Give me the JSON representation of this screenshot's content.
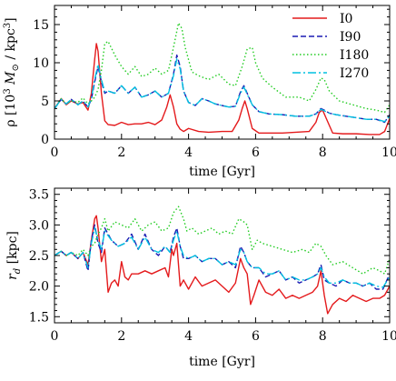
{
  "chart_data": [
    {
      "type": "line",
      "xlabel": "time [Gyr]",
      "ylabel_prefix": "ρ [10",
      "ylabel_sup": "3",
      "ylabel_mid": " M",
      "ylabel_sub": "⊙",
      "ylabel_suffix": " / kpc",
      "ylabel_sup2": "3",
      "ylabel_close": "]",
      "xlim": [
        0,
        10
      ],
      "ylim": [
        0,
        17.5
      ],
      "xticks": [
        0,
        2,
        4,
        6,
        8,
        10
      ],
      "yticks": [
        0,
        5,
        10,
        15
      ],
      "legend_position": "top-right",
      "series": [
        {
          "name": "I0",
          "color": "#e41a1c",
          "dash": "solid",
          "x": [
            0,
            0.2,
            0.35,
            0.5,
            0.7,
            0.85,
            1.0,
            1.1,
            1.2,
            1.25,
            1.3,
            1.4,
            1.5,
            1.6,
            1.8,
            2.0,
            2.2,
            2.4,
            2.6,
            2.8,
            3.0,
            3.2,
            3.35,
            3.45,
            3.55,
            3.65,
            3.75,
            3.85,
            4.0,
            4.3,
            4.6,
            5.0,
            5.3,
            5.5,
            5.6,
            5.68,
            5.75,
            5.9,
            6.1,
            6.4,
            6.8,
            7.2,
            7.6,
            7.8,
            7.9,
            8.0,
            8.1,
            8.3,
            8.6,
            9.0,
            9.4,
            9.7,
            9.85,
            10.0
          ],
          "y": [
            4.0,
            5.3,
            4.5,
            5.0,
            4.6,
            4.8,
            3.8,
            6.0,
            10.5,
            12.5,
            11.5,
            6.0,
            2.4,
            1.9,
            1.8,
            2.2,
            1.9,
            2.0,
            2.0,
            2.2,
            1.9,
            2.5,
            4.2,
            5.8,
            4.2,
            2.0,
            1.3,
            1.0,
            1.4,
            1.0,
            0.9,
            1.0,
            1.0,
            2.5,
            4.0,
            5.0,
            4.0,
            1.4,
            0.8,
            0.8,
            0.8,
            0.9,
            1.0,
            2.2,
            3.5,
            3.8,
            2.8,
            0.8,
            0.7,
            0.7,
            0.6,
            0.6,
            1.0,
            2.7
          ]
        },
        {
          "name": "I90",
          "color": "#1c1cb3",
          "dash": "6,3",
          "x": [
            0,
            0.2,
            0.35,
            0.5,
            0.7,
            0.85,
            1.0,
            1.1,
            1.2,
            1.3,
            1.4,
            1.5,
            1.6,
            1.8,
            2.0,
            2.2,
            2.4,
            2.6,
            2.8,
            3.0,
            3.2,
            3.4,
            3.55,
            3.65,
            3.75,
            3.85,
            4.0,
            4.2,
            4.4,
            4.6,
            4.8,
            5.0,
            5.2,
            5.4,
            5.55,
            5.65,
            5.75,
            5.9,
            6.1,
            6.4,
            6.8,
            7.2,
            7.6,
            7.8,
            7.95,
            8.05,
            8.2,
            8.4,
            8.7,
            9.0,
            9.3,
            9.6,
            9.85,
            10.0
          ],
          "y": [
            4.0,
            5.2,
            4.6,
            5.2,
            4.5,
            5.0,
            4.2,
            5.2,
            7.5,
            9.5,
            7.5,
            6.0,
            6.3,
            6.0,
            7.0,
            6.0,
            6.8,
            5.5,
            5.8,
            6.3,
            5.5,
            6.0,
            8.5,
            11.0,
            9.5,
            6.3,
            4.8,
            4.4,
            5.3,
            5.0,
            4.6,
            4.4,
            4.2,
            4.3,
            6.2,
            7.0,
            6.0,
            4.5,
            3.6,
            3.3,
            3.2,
            3.0,
            3.0,
            3.3,
            4.0,
            3.8,
            3.4,
            3.2,
            3.0,
            2.8,
            2.6,
            2.6,
            2.2,
            3.2
          ]
        },
        {
          "name": "I180",
          "color": "#22cc22",
          "dash": "1.5,2.5",
          "x": [
            0,
            0.2,
            0.35,
            0.5,
            0.7,
            0.85,
            1.0,
            1.1,
            1.2,
            1.3,
            1.4,
            1.5,
            1.6,
            1.8,
            2.0,
            2.2,
            2.4,
            2.6,
            2.8,
            3.0,
            3.2,
            3.4,
            3.55,
            3.7,
            3.8,
            3.9,
            4.1,
            4.3,
            4.6,
            4.9,
            5.2,
            5.4,
            5.6,
            5.75,
            5.9,
            6.0,
            6.2,
            6.5,
            6.9,
            7.3,
            7.6,
            7.8,
            7.95,
            8.05,
            8.2,
            8.5,
            8.9,
            9.3,
            9.6,
            9.85,
            10.0
          ],
          "y": [
            4.0,
            5.3,
            4.6,
            5.0,
            4.8,
            5.4,
            4.6,
            5.0,
            5.5,
            6.5,
            9.0,
            12.5,
            12.8,
            11.0,
            9.5,
            8.5,
            9.5,
            8.2,
            8.5,
            9.3,
            8.5,
            9.0,
            12.0,
            15.2,
            14.5,
            12.0,
            8.8,
            8.3,
            7.8,
            8.5,
            7.2,
            7.0,
            9.5,
            11.8,
            12.0,
            10.0,
            8.0,
            6.8,
            5.5,
            5.5,
            5.0,
            6.5,
            8.0,
            7.8,
            6.3,
            5.0,
            4.5,
            4.0,
            3.8,
            3.5,
            4.5
          ]
        },
        {
          "name": "I270",
          "color": "#00c0e0",
          "dash": "9,3,2,3",
          "x": [
            0,
            0.2,
            0.35,
            0.5,
            0.7,
            0.85,
            1.0,
            1.1,
            1.2,
            1.3,
            1.4,
            1.5,
            1.6,
            1.8,
            2.0,
            2.2,
            2.4,
            2.6,
            2.8,
            3.0,
            3.2,
            3.4,
            3.55,
            3.65,
            3.75,
            3.85,
            4.0,
            4.2,
            4.4,
            4.6,
            4.8,
            5.0,
            5.2,
            5.4,
            5.55,
            5.65,
            5.75,
            5.9,
            6.1,
            6.4,
            6.8,
            7.2,
            7.6,
            7.8,
            7.95,
            8.05,
            8.2,
            8.4,
            8.7,
            9.0,
            9.3,
            9.6,
            9.85,
            10.0
          ],
          "y": [
            4.0,
            5.2,
            4.6,
            5.2,
            4.5,
            5.0,
            4.2,
            5.4,
            7.8,
            9.8,
            7.8,
            6.2,
            6.3,
            6.0,
            7.0,
            6.0,
            6.8,
            5.5,
            5.8,
            6.3,
            5.5,
            6.0,
            8.3,
            10.5,
            9.2,
            6.3,
            4.8,
            4.4,
            5.3,
            5.0,
            4.6,
            4.4,
            4.2,
            4.3,
            6.0,
            6.8,
            5.9,
            4.5,
            3.6,
            3.3,
            3.2,
            3.0,
            3.0,
            3.3,
            3.9,
            3.7,
            3.4,
            3.2,
            3.0,
            2.8,
            2.6,
            2.6,
            2.3,
            3.0
          ]
        }
      ]
    },
    {
      "type": "line",
      "xlabel": "time [Gyr]",
      "ylabel_prefix": "r",
      "ylabel_sub": "d",
      "ylabel_suffix": " [kpc]",
      "xlim": [
        0,
        10
      ],
      "ylim": [
        1.4,
        3.6
      ],
      "xticks": [
        0,
        2,
        4,
        6,
        8,
        10
      ],
      "yticks": [
        1.5,
        2.0,
        2.5,
        3.0,
        3.5
      ],
      "series": [
        {
          "name": "I0",
          "color": "#e41a1c",
          "dash": "solid",
          "x": [
            0,
            0.2,
            0.35,
            0.5,
            0.7,
            0.85,
            1.0,
            1.1,
            1.2,
            1.25,
            1.3,
            1.4,
            1.5,
            1.6,
            1.7,
            1.8,
            1.9,
            2.0,
            2.1,
            2.2,
            2.3,
            2.5,
            2.7,
            2.9,
            3.1,
            3.3,
            3.4,
            3.5,
            3.55,
            3.65,
            3.75,
            3.85,
            4.0,
            4.2,
            4.4,
            4.6,
            4.8,
            5.0,
            5.2,
            5.4,
            5.55,
            5.65,
            5.75,
            5.85,
            5.95,
            6.1,
            6.3,
            6.5,
            6.7,
            6.9,
            7.1,
            7.3,
            7.5,
            7.7,
            7.85,
            7.95,
            8.05,
            8.15,
            8.3,
            8.5,
            8.7,
            8.9,
            9.1,
            9.3,
            9.5,
            9.7,
            9.85,
            10.0
          ],
          "y": [
            2.5,
            2.57,
            2.5,
            2.55,
            2.45,
            2.55,
            2.35,
            2.75,
            3.1,
            3.15,
            2.95,
            2.4,
            2.6,
            1.9,
            2.05,
            2.1,
            2.0,
            2.4,
            2.15,
            2.1,
            2.2,
            2.2,
            2.25,
            2.2,
            2.25,
            2.3,
            2.15,
            2.6,
            2.5,
            2.7,
            2.0,
            2.1,
            1.95,
            2.15,
            2.0,
            2.05,
            2.1,
            2.0,
            1.9,
            2.05,
            2.45,
            2.3,
            2.2,
            1.7,
            1.85,
            2.1,
            1.9,
            1.85,
            1.95,
            1.8,
            1.85,
            1.8,
            1.85,
            1.9,
            2.0,
            2.25,
            1.85,
            1.55,
            1.7,
            1.8,
            1.75,
            1.85,
            1.8,
            1.75,
            1.8,
            1.8,
            1.85,
            2.0
          ]
        },
        {
          "name": "I90",
          "color": "#1c1cb3",
          "dash": "6,3",
          "x": [
            0,
            0.2,
            0.35,
            0.5,
            0.7,
            0.85,
            1.0,
            1.1,
            1.2,
            1.3,
            1.4,
            1.5,
            1.7,
            1.9,
            2.1,
            2.3,
            2.5,
            2.7,
            2.9,
            3.1,
            3.3,
            3.45,
            3.55,
            3.65,
            3.75,
            3.85,
            4.0,
            4.2,
            4.4,
            4.6,
            4.8,
            5.0,
            5.2,
            5.4,
            5.55,
            5.65,
            5.75,
            5.9,
            6.1,
            6.3,
            6.5,
            6.7,
            6.9,
            7.1,
            7.3,
            7.5,
            7.7,
            7.85,
            7.95,
            8.05,
            8.2,
            8.4,
            8.6,
            8.8,
            9.0,
            9.2,
            9.4,
            9.6,
            9.8,
            10.0
          ],
          "y": [
            2.5,
            2.57,
            2.5,
            2.55,
            2.45,
            2.55,
            2.25,
            2.75,
            3.0,
            2.7,
            2.55,
            2.95,
            2.75,
            2.65,
            2.7,
            2.85,
            2.6,
            2.85,
            2.6,
            2.5,
            2.65,
            2.55,
            2.8,
            2.95,
            2.65,
            2.45,
            2.45,
            2.5,
            2.4,
            2.45,
            2.45,
            2.35,
            2.4,
            2.3,
            2.65,
            2.55,
            2.4,
            2.3,
            2.3,
            2.15,
            2.2,
            2.25,
            2.1,
            2.15,
            2.05,
            2.1,
            2.15,
            2.2,
            2.35,
            2.1,
            2.05,
            2.0,
            2.1,
            2.05,
            2.05,
            2.0,
            2.05,
            1.95,
            1.95,
            2.2
          ]
        },
        {
          "name": "I180",
          "color": "#22cc22",
          "dash": "1.5,2.5",
          "x": [
            0,
            0.2,
            0.35,
            0.5,
            0.7,
            0.85,
            1.0,
            1.1,
            1.2,
            1.3,
            1.4,
            1.5,
            1.6,
            1.8,
            2.0,
            2.2,
            2.4,
            2.6,
            2.8,
            3.0,
            3.2,
            3.4,
            3.55,
            3.7,
            3.85,
            3.95,
            4.1,
            4.3,
            4.5,
            4.7,
            4.9,
            5.1,
            5.3,
            5.5,
            5.65,
            5.75,
            5.9,
            6.05,
            6.2,
            6.5,
            6.8,
            7.1,
            7.4,
            7.6,
            7.8,
            7.95,
            8.1,
            8.3,
            8.6,
            8.9,
            9.2,
            9.5,
            9.7,
            9.85,
            10.0
          ],
          "y": [
            2.5,
            2.57,
            2.5,
            2.55,
            2.5,
            2.6,
            2.5,
            2.65,
            2.7,
            2.85,
            2.95,
            3.1,
            2.9,
            3.05,
            3.0,
            2.95,
            3.1,
            2.9,
            3.0,
            3.05,
            2.9,
            2.95,
            3.2,
            3.3,
            3.1,
            2.9,
            2.95,
            2.85,
            2.9,
            2.95,
            2.85,
            2.9,
            2.85,
            3.1,
            3.05,
            3.0,
            2.6,
            2.75,
            2.7,
            2.65,
            2.6,
            2.55,
            2.6,
            2.55,
            2.7,
            2.65,
            2.5,
            2.35,
            2.4,
            2.3,
            2.2,
            2.3,
            2.25,
            2.2,
            2.45
          ]
        },
        {
          "name": "I270",
          "color": "#00c0e0",
          "dash": "9,3,2,3",
          "x": [
            0,
            0.2,
            0.35,
            0.5,
            0.7,
            0.85,
            1.0,
            1.1,
            1.2,
            1.3,
            1.4,
            1.5,
            1.7,
            1.9,
            2.1,
            2.3,
            2.5,
            2.7,
            2.9,
            3.1,
            3.3,
            3.45,
            3.55,
            3.65,
            3.75,
            3.85,
            4.0,
            4.2,
            4.4,
            4.6,
            4.8,
            5.0,
            5.2,
            5.4,
            5.55,
            5.65,
            5.75,
            5.9,
            6.1,
            6.3,
            6.5,
            6.7,
            6.9,
            7.1,
            7.3,
            7.5,
            7.7,
            7.85,
            7.95,
            8.05,
            8.2,
            8.4,
            8.6,
            8.8,
            9.0,
            9.2,
            9.4,
            9.6,
            9.8,
            10.0
          ],
          "y": [
            2.5,
            2.57,
            2.5,
            2.55,
            2.45,
            2.55,
            2.3,
            2.7,
            2.95,
            2.75,
            2.6,
            2.9,
            2.75,
            2.65,
            2.7,
            2.8,
            2.6,
            2.8,
            2.6,
            2.55,
            2.65,
            2.55,
            2.75,
            2.9,
            2.65,
            2.5,
            2.45,
            2.5,
            2.4,
            2.45,
            2.45,
            2.35,
            2.4,
            2.35,
            2.6,
            2.55,
            2.4,
            2.3,
            2.3,
            2.2,
            2.2,
            2.25,
            2.1,
            2.15,
            2.1,
            2.1,
            2.15,
            2.2,
            2.3,
            2.15,
            2.05,
            2.05,
            2.1,
            2.05,
            2.05,
            2.0,
            2.05,
            2.0,
            1.98,
            2.15
          ]
        }
      ]
    }
  ]
}
